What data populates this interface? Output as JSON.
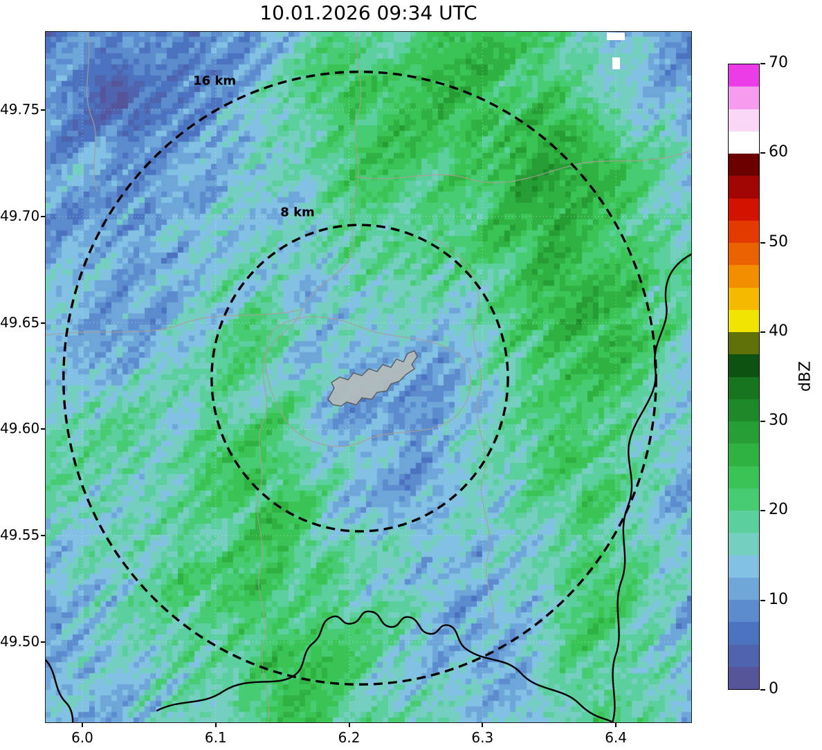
{
  "title": "10.01.2026 09:34 UTC",
  "chart_data": {
    "type": "heatmap",
    "subtype": "weather-radar-reflectivity-map",
    "title": "10.01.2026 09:34 UTC",
    "units": "dBZ",
    "lon_range": [
      5.972,
      6.457
    ],
    "lat_range": [
      49.462,
      49.787
    ],
    "x_ticks": {
      "labels": [
        "6.0",
        "6.1",
        "6.2",
        "6.3",
        "6.4"
      ],
      "values": [
        6.0,
        6.1,
        6.2,
        6.3,
        6.4
      ]
    },
    "y_ticks": {
      "labels": [
        "49.75",
        "49.70",
        "49.65",
        "49.60",
        "49.55",
        "49.50"
      ],
      "values": [
        49.75,
        49.7,
        49.65,
        49.6,
        49.55,
        49.5
      ]
    },
    "range_rings": {
      "center": {
        "lon": 6.208,
        "lat": 49.624
      },
      "rings": [
        {
          "label": "8 km",
          "radius_km": 8
        },
        {
          "label": "16 km",
          "radius_km": 16
        }
      ]
    },
    "colorbar": {
      "label": "dBZ",
      "min": 0,
      "max": 70,
      "segment_step": 2.5,
      "ticks": [
        0,
        10,
        20,
        30,
        40,
        50,
        60,
        70
      ],
      "colors": [
        "#56549b",
        "#4f63ae",
        "#4b73c0",
        "#5c8cce",
        "#6ea6da",
        "#82c0e4",
        "#74cfc0",
        "#5ccf9f",
        "#47cc74",
        "#3bc456",
        "#30b243",
        "#279e35",
        "#1e8929",
        "#17741f",
        "#0d5212",
        "#5e7007",
        "#f0e400",
        "#f6b900",
        "#f28d00",
        "#ea6300",
        "#e43a00",
        "#d41200",
        "#a30404",
        "#6b0000",
        "#ffffff",
        "#fbd7f6",
        "#f79bef",
        "#ec3ce9"
      ]
    },
    "no_data_color": "#ffffff",
    "grid_note": "approximate 20x20 downsample of the radar reflectivity field (dBZ), rows top-to-bottom",
    "reflectivity_grid_dbz": [
      [
        9,
        7,
        6,
        5,
        6,
        9,
        12,
        14,
        17,
        20,
        22,
        22,
        23,
        23,
        22,
        21,
        19,
        12,
        10,
        10
      ],
      [
        9,
        7,
        5,
        5,
        7,
        10,
        13,
        15,
        18,
        21,
        22,
        23,
        24,
        24,
        23,
        22,
        20,
        15,
        11,
        10
      ],
      [
        10,
        8,
        6,
        6,
        8,
        11,
        14,
        16,
        19,
        21,
        23,
        23,
        24,
        24,
        24,
        23,
        21,
        18,
        15,
        13
      ],
      [
        10,
        9,
        8,
        7,
        9,
        12,
        15,
        17,
        20,
        22,
        23,
        23,
        23,
        24,
        25,
        24,
        22,
        20,
        17,
        14
      ],
      [
        11,
        10,
        9,
        9,
        11,
        13,
        15,
        17,
        19,
        21,
        22,
        22,
        22,
        23,
        25,
        25,
        23,
        21,
        18,
        15
      ],
      [
        12,
        11,
        10,
        10,
        12,
        14,
        15,
        16,
        18,
        20,
        21,
        21,
        21,
        22,
        24,
        26,
        24,
        22,
        19,
        16
      ],
      [
        13,
        12,
        11,
        11,
        13,
        15,
        16,
        16,
        17,
        19,
        20,
        19,
        20,
        21,
        23,
        26,
        25,
        23,
        19,
        16
      ],
      [
        14,
        13,
        12,
        12,
        14,
        16,
        17,
        16,
        16,
        17,
        18,
        17,
        18,
        20,
        22,
        25,
        25,
        23,
        20,
        17
      ],
      [
        15,
        14,
        13,
        13,
        15,
        17,
        18,
        17,
        15,
        14,
        15,
        14,
        16,
        19,
        21,
        24,
        25,
        24,
        20,
        17
      ],
      [
        16,
        15,
        14,
        14,
        16,
        18,
        19,
        18,
        14,
        12,
        11,
        12,
        14,
        17,
        20,
        23,
        24,
        23,
        20,
        17
      ],
      [
        16,
        16,
        15,
        15,
        17,
        19,
        20,
        19,
        14,
        11,
        10,
        11,
        13,
        16,
        19,
        22,
        23,
        22,
        19,
        16
      ],
      [
        17,
        16,
        16,
        16,
        18,
        20,
        21,
        20,
        15,
        12,
        10,
        11,
        13,
        15,
        18,
        21,
        22,
        21,
        18,
        15
      ],
      [
        17,
        17,
        16,
        17,
        19,
        21,
        21,
        21,
        17,
        14,
        12,
        12,
        13,
        15,
        17,
        20,
        21,
        20,
        17,
        14
      ],
      [
        16,
        17,
        17,
        17,
        19,
        21,
        22,
        21,
        18,
        15,
        13,
        13,
        13,
        14,
        16,
        19,
        21,
        19,
        16,
        13
      ],
      [
        15,
        16,
        17,
        18,
        20,
        22,
        22,
        22,
        19,
        16,
        14,
        13,
        13,
        14,
        16,
        18,
        20,
        19,
        15,
        12
      ],
      [
        14,
        15,
        16,
        18,
        20,
        22,
        23,
        22,
        20,
        17,
        15,
        14,
        13,
        13,
        15,
        18,
        20,
        19,
        15,
        12
      ],
      [
        13,
        14,
        15,
        17,
        19,
        21,
        23,
        23,
        21,
        18,
        16,
        15,
        13,
        12,
        14,
        17,
        20,
        20,
        16,
        12
      ],
      [
        12,
        13,
        14,
        16,
        18,
        20,
        22,
        23,
        22,
        19,
        17,
        15,
        13,
        12,
        13,
        17,
        21,
        21,
        17,
        13
      ],
      [
        11,
        12,
        13,
        15,
        17,
        19,
        21,
        23,
        22,
        20,
        18,
        16,
        14,
        12,
        13,
        18,
        22,
        22,
        18,
        14
      ],
      [
        10,
        11,
        12,
        14,
        16,
        18,
        21,
        22,
        23,
        21,
        19,
        17,
        14,
        13,
        14,
        18,
        22,
        23,
        19,
        14
      ]
    ]
  }
}
